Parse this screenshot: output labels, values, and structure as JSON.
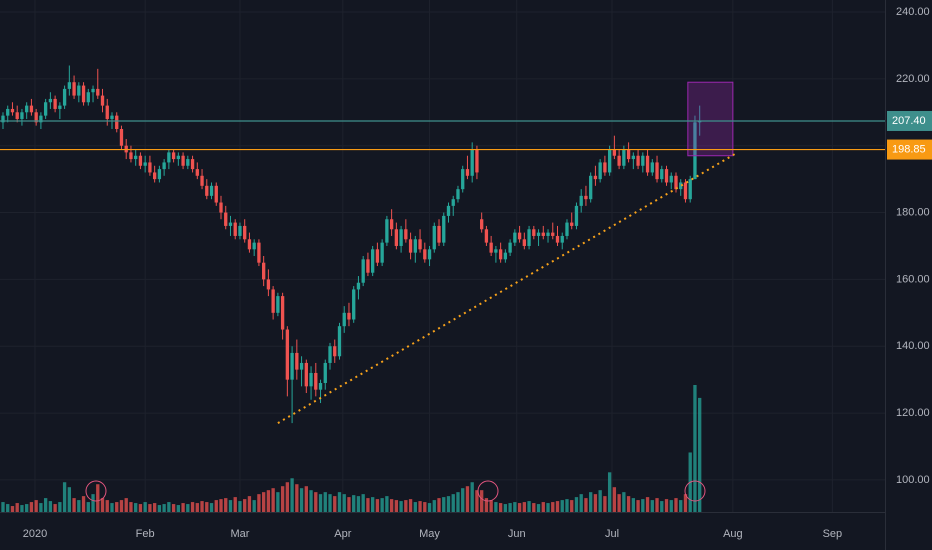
{
  "chart_data": {
    "type": "candlestick",
    "up_color": "#26a69a",
    "down_color": "#ef5350",
    "background": "#131722",
    "grid": true,
    "xlim": [
      -0.63,
      186.1
    ],
    "ylim": [
      90.4,
      243.6
    ],
    "xticks": [
      {
        "value": 6.75,
        "label": "2020"
      },
      {
        "value": 30,
        "label": "Feb"
      },
      {
        "value": 50,
        "label": "Mar"
      },
      {
        "value": 71.7,
        "label": "Apr"
      },
      {
        "value": 90,
        "label": "May"
      },
      {
        "value": 108.4,
        "label": "Jun"
      },
      {
        "value": 128.5,
        "label": "Jul"
      },
      {
        "value": 154,
        "label": "Aug"
      },
      {
        "value": 175,
        "label": "Sep"
      }
    ],
    "yticks": [
      {
        "value": 100,
        "label": "100.00"
      },
      {
        "value": 120,
        "label": "120.00"
      },
      {
        "value": 140,
        "label": "140.00"
      },
      {
        "value": 160,
        "label": "160.00"
      },
      {
        "value": 180,
        "label": "180.00"
      },
      {
        "value": 200,
        "label": "200.00"
      },
      {
        "value": 220,
        "label": "220.00"
      },
      {
        "value": 240,
        "label": "240.00"
      }
    ],
    "levels": [
      {
        "value": 207.4,
        "label": "207.40",
        "color": "#3e8f8c"
      },
      {
        "value": 198.85,
        "label": "198.85",
        "color": "#f89a13"
      }
    ],
    "trendline": {
      "x": [
        58,
        155
      ],
      "y": [
        117,
        198
      ],
      "color": "#f7a21b"
    },
    "box": {
      "x": [
        144.5,
        154
      ],
      "y": [
        197,
        219
      ],
      "color": "#9c27b0"
    },
    "candles": [
      [
        207,
        210,
        205,
        209,
        10
      ],
      [
        209,
        212,
        207,
        211,
        8
      ],
      [
        211,
        213,
        209,
        210,
        6
      ],
      [
        210,
        212,
        207,
        208,
        9
      ],
      [
        208,
        211,
        206,
        210,
        7
      ],
      [
        210,
        213,
        208,
        212,
        8
      ],
      [
        212,
        214,
        209,
        210,
        10
      ],
      [
        210,
        211,
        206,
        207,
        12
      ],
      [
        207,
        210,
        205,
        209,
        9
      ],
      [
        209,
        214,
        208,
        213,
        14
      ],
      [
        213,
        216,
        211,
        214,
        11
      ],
      [
        214,
        215,
        210,
        211,
        8
      ],
      [
        211,
        213,
        208,
        212,
        10
      ],
      [
        212,
        218,
        211,
        217,
        30
      ],
      [
        217,
        224,
        215,
        219,
        25
      ],
      [
        219,
        221,
        214,
        215,
        14
      ],
      [
        215,
        219,
        213,
        218,
        12
      ],
      [
        218,
        219,
        212,
        213,
        16
      ],
      [
        213,
        217,
        212,
        216,
        10
      ],
      [
        216,
        218,
        213,
        217,
        18
      ],
      [
        217,
        223,
        214,
        215,
        28
      ],
      [
        215,
        217,
        210,
        212,
        14
      ],
      [
        212,
        214,
        206,
        208,
        12
      ],
      [
        208,
        210,
        205,
        209,
        9
      ],
      [
        209,
        210,
        204,
        205,
        10
      ],
      [
        205,
        206,
        199,
        200,
        12
      ],
      [
        200,
        202,
        196,
        198,
        14
      ],
      [
        198,
        200,
        195,
        196,
        10
      ],
      [
        196,
        199,
        194,
        197,
        9
      ],
      [
        197,
        198,
        193,
        194,
        8
      ],
      [
        194,
        197,
        192,
        195,
        10
      ],
      [
        195,
        197,
        191,
        192,
        8
      ],
      [
        192,
        194,
        189,
        190,
        9
      ],
      [
        190,
        194,
        189,
        193,
        7
      ],
      [
        193,
        196,
        191,
        195,
        8
      ],
      [
        195,
        199,
        193,
        198,
        10
      ],
      [
        198,
        199,
        195,
        196,
        8
      ],
      [
        196,
        198,
        194,
        197,
        7
      ],
      [
        197,
        198,
        193,
        194,
        9
      ],
      [
        194,
        197,
        193,
        196,
        8
      ],
      [
        196,
        197,
        192,
        193,
        10
      ],
      [
        193,
        195,
        190,
        191,
        9
      ],
      [
        191,
        193,
        187,
        188,
        11
      ],
      [
        188,
        190,
        184,
        185,
        10
      ],
      [
        185,
        189,
        184,
        188,
        9
      ],
      [
        188,
        189,
        182,
        183,
        12
      ],
      [
        183,
        185,
        178,
        180,
        13
      ],
      [
        180,
        182,
        175,
        176,
        14
      ],
      [
        176,
        179,
        173,
        177,
        12
      ],
      [
        177,
        178,
        172,
        173,
        15
      ],
      [
        173,
        177,
        172,
        176,
        11
      ],
      [
        176,
        178,
        171,
        172,
        13
      ],
      [
        172,
        174,
        168,
        169,
        16
      ],
      [
        169,
        172,
        167,
        171,
        12
      ],
      [
        171,
        172,
        164,
        165,
        18
      ],
      [
        165,
        167,
        158,
        160,
        20
      ],
      [
        160,
        163,
        155,
        157,
        22
      ],
      [
        157,
        158,
        148,
        150,
        24
      ],
      [
        150,
        156,
        149,
        155,
        20
      ],
      [
        155,
        156,
        142,
        145,
        26
      ],
      [
        145,
        146,
        125,
        130,
        30
      ],
      [
        130,
        140,
        117,
        138,
        34
      ],
      [
        138,
        142,
        130,
        133,
        28
      ],
      [
        133,
        137,
        128,
        135,
        24
      ],
      [
        135,
        136,
        126,
        128,
        26
      ],
      [
        128,
        134,
        124,
        132,
        22
      ],
      [
        132,
        135,
        125,
        127,
        20
      ],
      [
        127,
        130,
        123,
        129,
        18
      ],
      [
        129,
        136,
        127,
        135,
        20
      ],
      [
        135,
        141,
        133,
        140,
        18
      ],
      [
        140,
        142,
        135,
        137,
        16
      ],
      [
        137,
        147,
        136,
        146,
        20
      ],
      [
        146,
        152,
        144,
        150,
        18
      ],
      [
        150,
        153,
        146,
        148,
        15
      ],
      [
        148,
        158,
        147,
        157,
        17
      ],
      [
        157,
        161,
        154,
        159,
        16
      ],
      [
        159,
        167,
        158,
        166,
        18
      ],
      [
        166,
        168,
        161,
        162,
        14
      ],
      [
        162,
        170,
        161,
        169,
        15
      ],
      [
        169,
        171,
        164,
        165,
        13
      ],
      [
        165,
        172,
        164,
        171,
        14
      ],
      [
        171,
        179,
        170,
        178,
        16
      ],
      [
        178,
        181,
        173,
        175,
        13
      ],
      [
        175,
        177,
        169,
        170,
        12
      ],
      [
        170,
        176,
        168,
        175,
        11
      ],
      [
        175,
        178,
        171,
        172,
        12
      ],
      [
        172,
        174,
        166,
        168,
        13
      ],
      [
        168,
        173,
        165,
        172,
        10
      ],
      [
        172,
        175,
        168,
        169,
        11
      ],
      [
        169,
        171,
        165,
        166,
        10
      ],
      [
        166,
        170,
        164,
        169,
        9
      ],
      [
        169,
        177,
        168,
        176,
        12
      ],
      [
        176,
        178,
        170,
        171,
        14
      ],
      [
        171,
        180,
        170,
        179,
        15
      ],
      [
        179,
        183,
        177,
        182,
        16
      ],
      [
        182,
        185,
        179,
        184,
        18
      ],
      [
        184,
        188,
        183,
        187,
        20
      ],
      [
        187,
        194,
        186,
        193,
        24
      ],
      [
        193,
        197,
        190,
        191,
        26
      ],
      [
        191,
        201,
        189,
        199,
        30
      ],
      [
        199,
        200,
        190,
        192,
        22
      ],
      [
        178,
        180,
        174,
        175,
        22
      ],
      [
        175,
        176,
        170,
        171,
        14
      ],
      [
        171,
        173,
        167,
        168,
        12
      ],
      [
        168,
        170,
        165,
        169,
        10
      ],
      [
        169,
        171,
        165,
        166,
        9
      ],
      [
        166,
        169,
        165,
        168,
        8
      ],
      [
        168,
        172,
        167,
        171,
        9
      ],
      [
        171,
        175,
        170,
        174,
        10
      ],
      [
        174,
        176,
        171,
        172,
        9
      ],
      [
        172,
        174,
        169,
        170,
        10
      ],
      [
        170,
        176,
        169,
        175,
        11
      ],
      [
        175,
        176,
        172,
        173,
        9
      ],
      [
        173,
        175,
        170,
        174,
        8
      ],
      [
        174,
        176,
        172,
        173,
        10
      ],
      [
        173,
        175,
        171,
        174,
        9
      ],
      [
        174,
        177,
        172,
        173,
        10
      ],
      [
        173,
        176,
        170,
        171,
        11
      ],
      [
        171,
        174,
        169,
        173,
        12
      ],
      [
        173,
        178,
        172,
        177,
        13
      ],
      [
        177,
        180,
        175,
        176,
        12
      ],
      [
        176,
        183,
        175,
        182,
        15
      ],
      [
        182,
        187,
        180,
        185,
        18
      ],
      [
        185,
        188,
        182,
        184,
        14
      ],
      [
        184,
        192,
        183,
        191,
        20
      ],
      [
        191,
        194,
        188,
        190,
        18
      ],
      [
        190,
        196,
        189,
        195,
        22
      ],
      [
        195,
        197,
        191,
        192,
        16
      ],
      [
        192,
        200,
        191,
        199,
        40
      ],
      [
        199,
        203,
        196,
        197,
        25
      ],
      [
        197,
        199,
        193,
        194,
        18
      ],
      [
        194,
        200,
        193,
        199,
        20
      ],
      [
        199,
        201,
        195,
        196,
        16
      ],
      [
        196,
        198,
        193,
        197,
        14
      ],
      [
        197,
        199,
        193,
        194,
        12
      ],
      [
        194,
        198,
        192,
        197,
        13
      ],
      [
        197,
        199,
        191,
        192,
        15
      ],
      [
        192,
        196,
        191,
        195,
        12
      ],
      [
        195,
        197,
        189,
        190,
        14
      ],
      [
        190,
        194,
        189,
        193,
        11
      ],
      [
        193,
        194,
        188,
        189,
        13
      ],
      [
        189,
        192,
        187,
        191,
        12
      ],
      [
        191,
        192,
        186,
        187,
        14
      ],
      [
        187,
        190,
        185,
        189,
        12
      ],
      [
        189,
        190,
        183,
        184,
        18
      ],
      [
        184,
        191,
        183,
        190,
        60
      ],
      [
        190,
        209,
        190,
        207,
        128
      ],
      [
        207,
        212,
        203,
        207.4,
        115
      ]
    ]
  }
}
